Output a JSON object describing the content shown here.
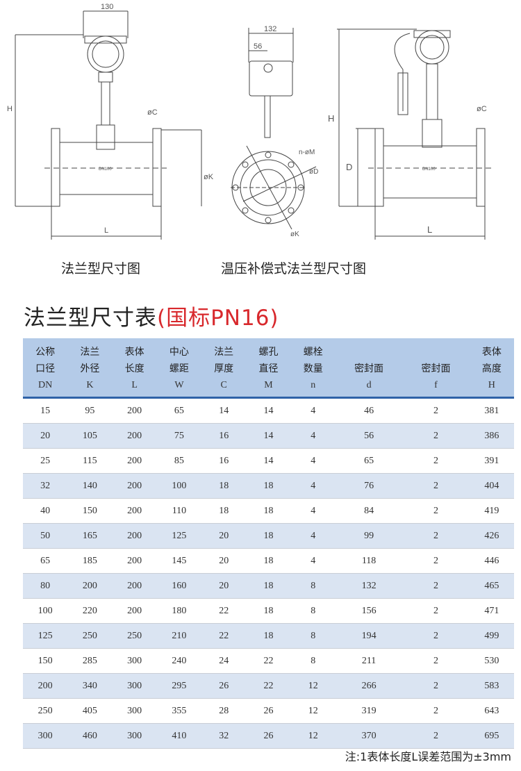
{
  "drawings": {
    "left": {
      "caption": "法兰型尺寸图",
      "dim_width": "130",
      "dim_h": "H",
      "dim_l": "L",
      "dim_c": "øC",
      "dim_k": "øK",
      "label": "DN100"
    },
    "middle": {
      "dim_width": "132",
      "dim_56": "56",
      "dim_m": "n-øM",
      "dim_d": "øD",
      "dim_k": "øK"
    },
    "right": {
      "caption": "温压补偿式法兰型尺寸图",
      "dim_h": "H",
      "dim_l": "L",
      "dim_c": "øC",
      "dim_d": "D",
      "label": "DN100"
    }
  },
  "table_title": {
    "main": "法兰型尺寸表",
    "sub": "(国标PN16)"
  },
  "table": {
    "headers": [
      {
        "l1": "公称",
        "l2": "口径",
        "sym": "DN"
      },
      {
        "l1": "法兰",
        "l2": "外径",
        "sym": "K"
      },
      {
        "l1": "表体",
        "l2": "长度",
        "sym": "L"
      },
      {
        "l1": "中心",
        "l2": "螺距",
        "sym": "W"
      },
      {
        "l1": "法兰",
        "l2": "厚度",
        "sym": "C"
      },
      {
        "l1": "螺孔",
        "l2": "直径",
        "sym": "M"
      },
      {
        "l1": "螺栓",
        "l2": "数量",
        "sym": "n"
      },
      {
        "l1": "",
        "l2": "密封面",
        "sym": "d"
      },
      {
        "l1": "",
        "l2": "密封面",
        "sym": "f"
      },
      {
        "l1": "表体",
        "l2": "高度",
        "sym": "H"
      }
    ],
    "rows": [
      [
        "15",
        "95",
        "200",
        "65",
        "14",
        "14",
        "4",
        "46",
        "2",
        "381"
      ],
      [
        "20",
        "105",
        "200",
        "75",
        "16",
        "14",
        "4",
        "56",
        "2",
        "386"
      ],
      [
        "25",
        "115",
        "200",
        "85",
        "16",
        "14",
        "4",
        "65",
        "2",
        "391"
      ],
      [
        "32",
        "140",
        "200",
        "100",
        "18",
        "18",
        "4",
        "76",
        "2",
        "404"
      ],
      [
        "40",
        "150",
        "200",
        "110",
        "18",
        "18",
        "4",
        "84",
        "2",
        "419"
      ],
      [
        "50",
        "165",
        "200",
        "125",
        "20",
        "18",
        "4",
        "99",
        "2",
        "426"
      ],
      [
        "65",
        "185",
        "200",
        "145",
        "20",
        "18",
        "4",
        "118",
        "2",
        "446"
      ],
      [
        "80",
        "200",
        "200",
        "160",
        "20",
        "18",
        "8",
        "132",
        "2",
        "465"
      ],
      [
        "100",
        "220",
        "200",
        "180",
        "22",
        "18",
        "8",
        "156",
        "2",
        "471"
      ],
      [
        "125",
        "250",
        "250",
        "210",
        "22",
        "18",
        "8",
        "194",
        "2",
        "499"
      ],
      [
        "150",
        "285",
        "300",
        "240",
        "24",
        "22",
        "8",
        "211",
        "2",
        "530"
      ],
      [
        "200",
        "340",
        "300",
        "295",
        "26",
        "22",
        "12",
        "266",
        "2",
        "583"
      ],
      [
        "250",
        "405",
        "300",
        "355",
        "28",
        "26",
        "12",
        "319",
        "2",
        "643"
      ],
      [
        "300",
        "460",
        "300",
        "410",
        "32",
        "26",
        "12",
        "370",
        "2",
        "695"
      ]
    ]
  },
  "note": "注:1表体长度L误差范围为±3mm",
  "colors": {
    "header_bg": "#b4cbe8",
    "header_rule": "#2f62a8",
    "row_alt": "#dae4f2",
    "accent_red": "#d8282c"
  }
}
